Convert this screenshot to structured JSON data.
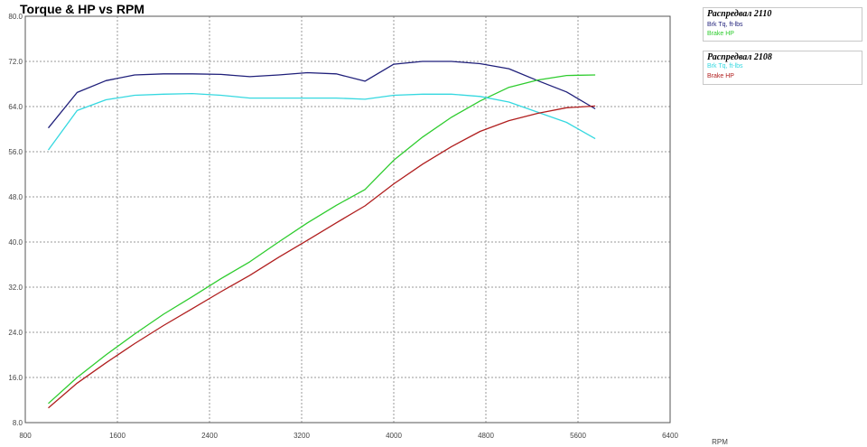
{
  "title": "Torque & HP vs RPM",
  "legends": [
    {
      "title": "Распредвал 2110",
      "entries": [
        {
          "label": "Brk Tq, ft-lbs",
          "color": "#1f1f7a"
        },
        {
          "label": "Brake HP",
          "color": "#2ecc2e"
        }
      ]
    },
    {
      "title": "Распредвал 2108",
      "entries": [
        {
          "label": "Brk Tq, ft-lbs",
          "color": "#35d8e0"
        },
        {
          "label": "Brake HP",
          "color": "#b01e1e"
        }
      ]
    }
  ],
  "chart_data": {
    "type": "line",
    "title": "Torque & HP vs RPM",
    "xlabel": "RPM",
    "ylabel": "",
    "xlim": [
      800,
      6400
    ],
    "ylim": [
      8.0,
      80.0
    ],
    "x_ticks": [
      "800",
      "1600",
      "2400",
      "3200",
      "4000",
      "4800",
      "5600",
      "6400"
    ],
    "y_ticks": [
      "8.0",
      "16.0",
      "24.0",
      "32.0",
      "40.0",
      "48.0",
      "56.0",
      "64.0",
      "72.0",
      "80.0"
    ],
    "grid": true,
    "legend_position": "right",
    "x": [
      1000,
      1250,
      1500,
      1750,
      2000,
      2250,
      2500,
      2750,
      3000,
      3250,
      3500,
      3750,
      4000,
      4250,
      4500,
      4750,
      5000,
      5250,
      5500,
      5750
    ],
    "series": [
      {
        "name": "Распредвал 2110 Brk Tq, ft-lbs",
        "color": "#1f1f7a",
        "values": [
          60.2,
          66.5,
          68.6,
          69.6,
          69.8,
          69.8,
          69.7,
          69.3,
          69.6,
          70.0,
          69.8,
          68.5,
          71.5,
          72.0,
          72.0,
          71.6,
          70.7,
          68.6,
          66.6,
          63.6
        ]
      },
      {
        "name": "Распредвал 2110 Brake HP",
        "color": "#2ecc2e",
        "values": [
          11.4,
          16.0,
          20.0,
          23.7,
          27.2,
          30.3,
          33.5,
          36.5,
          40.0,
          43.4,
          46.5,
          49.3,
          54.5,
          58.6,
          62.1,
          65.0,
          67.4,
          68.7,
          69.5,
          69.6
        ]
      },
      {
        "name": "Распредвал 2108 Brk Tq, ft-lbs",
        "color": "#35d8e0",
        "values": [
          56.3,
          63.3,
          65.2,
          66.0,
          66.2,
          66.3,
          66.0,
          65.5,
          65.5,
          65.5,
          65.5,
          65.3,
          66.0,
          66.2,
          66.2,
          65.8,
          64.8,
          63.0,
          61.2,
          58.3
        ]
      },
      {
        "name": "Распредвал 2108 Brake HP",
        "color": "#b01e1e",
        "values": [
          10.6,
          15.0,
          18.6,
          22.0,
          25.2,
          28.2,
          31.2,
          34.1,
          37.3,
          40.3,
          43.4,
          46.4,
          50.3,
          53.8,
          56.9,
          59.6,
          61.5,
          62.8,
          63.8,
          64.1
        ]
      }
    ]
  }
}
